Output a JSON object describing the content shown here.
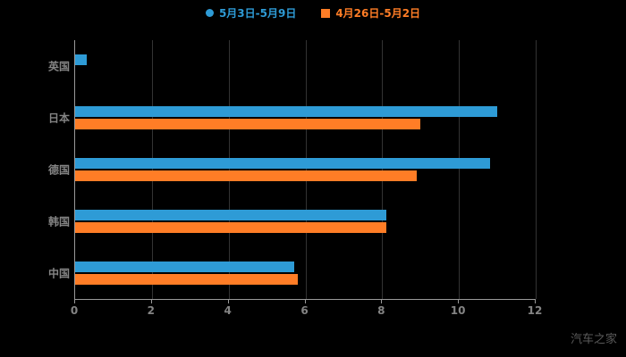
{
  "chart_data": {
    "type": "bar",
    "orientation": "horizontal",
    "title": "",
    "xlabel": "",
    "ylabel": "",
    "categories": [
      "英国",
      "日本",
      "德国",
      "韩国",
      "中国"
    ],
    "series": [
      {
        "name": "5月3日-5月9日",
        "color": "#2E9BD6",
        "values": [
          0.3,
          11.0,
          10.8,
          8.1,
          5.7
        ]
      },
      {
        "name": "4月26日-5月2日",
        "color": "#FF7D26",
        "values": [
          0,
          9.0,
          8.9,
          8.1,
          5.8
        ]
      }
    ],
    "xlim": [
      0,
      12
    ],
    "x_ticks": [
      0,
      2,
      4,
      6,
      8,
      10,
      12
    ],
    "grid": true,
    "legend_position": "top",
    "background": "#000000"
  },
  "legend": {
    "items": [
      {
        "label": "5月3日-5月9日",
        "marker": "circle",
        "color": "#2E9BD6"
      },
      {
        "label": "4月26日-5月2日",
        "marker": "square",
        "color": "#FF7D26"
      }
    ]
  },
  "watermark": "汽车之家"
}
